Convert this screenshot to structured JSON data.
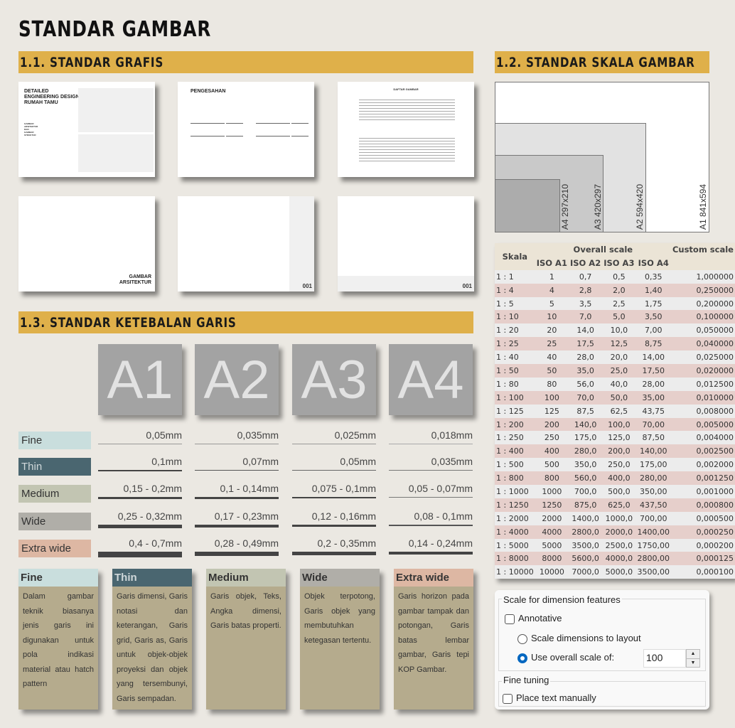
{
  "title": "STANDAR GAMBAR",
  "sections": {
    "s11": "1.1. STANDAR GRAFIS",
    "s12": "1.2. STANDAR SKALA GAMBAR",
    "s13": "1.3. STANDAR KETEBALAN GARIS"
  },
  "sheets": {
    "cover_title": "DETAILED ENGINEERING DESIGN RUMAH TAMU",
    "cover_sub": "GAMBAR ARSITEKTUR DAN GAMBAR STRUKTUR",
    "pengesahan": "PENGESAHAN",
    "daftar": "DAFTAR GAMBAR",
    "section_cover": "GAMBAR ARSITEKTUR",
    "sheet_no_1": "001",
    "sheet_no_2": "001"
  },
  "paper_sizes": [
    "A4 297x210",
    "A3 420x297",
    "A2 594x420",
    "A1 841x594"
  ],
  "scale_table": {
    "header_skala": "Skala",
    "header_overall": "Overall scale",
    "header_custom": "Custom scale",
    "columns": [
      "ISO A1",
      "ISO A2",
      "ISO A3",
      "ISO A4"
    ],
    "rows": [
      [
        "1 : 1",
        "1",
        "0,7",
        "0,5",
        "0,35",
        "1,000000"
      ],
      [
        "1 : 4",
        "4",
        "2,8",
        "2,0",
        "1,40",
        "0,250000"
      ],
      [
        "1 : 5",
        "5",
        "3,5",
        "2,5",
        "1,75",
        "0,200000"
      ],
      [
        "1 : 10",
        "10",
        "7,0",
        "5,0",
        "3,50",
        "0,100000"
      ],
      [
        "1 : 20",
        "20",
        "14,0",
        "10,0",
        "7,00",
        "0,050000"
      ],
      [
        "1 : 25",
        "25",
        "17,5",
        "12,5",
        "8,75",
        "0,040000"
      ],
      [
        "1 : 40",
        "40",
        "28,0",
        "20,0",
        "14,00",
        "0,025000"
      ],
      [
        "1 : 50",
        "50",
        "35,0",
        "25,0",
        "17,50",
        "0,020000"
      ],
      [
        "1 : 80",
        "80",
        "56,0",
        "40,0",
        "28,00",
        "0,012500"
      ],
      [
        "1 : 100",
        "100",
        "70,0",
        "50,0",
        "35,00",
        "0,010000"
      ],
      [
        "1 : 125",
        "125",
        "87,5",
        "62,5",
        "43,75",
        "0,008000"
      ],
      [
        "1 : 200",
        "200",
        "140,0",
        "100,0",
        "70,00",
        "0,005000"
      ],
      [
        "1 : 250",
        "250",
        "175,0",
        "125,0",
        "87,50",
        "0,004000"
      ],
      [
        "1 : 400",
        "400",
        "280,0",
        "200,0",
        "140,00",
        "0,002500"
      ],
      [
        "1 : 500",
        "500",
        "350,0",
        "250,0",
        "175,00",
        "0,002000"
      ],
      [
        "1 : 800",
        "800",
        "560,0",
        "400,0",
        "280,00",
        "0,001250"
      ],
      [
        "1 : 1000",
        "1000",
        "700,0",
        "500,0",
        "350,00",
        "0,001000"
      ],
      [
        "1 : 1250",
        "1250",
        "875,0",
        "625,0",
        "437,50",
        "0,000800"
      ],
      [
        "1 : 2000",
        "2000",
        "1400,0",
        "1000,0",
        "700,00",
        "0,000500"
      ],
      [
        "1 : 4000",
        "4000",
        "2800,0",
        "2000,0",
        "1400,00",
        "0,000250"
      ],
      [
        "1 : 5000",
        "5000",
        "3500,0",
        "2500,0",
        "1750,00",
        "0,000200"
      ],
      [
        "1 : 8000",
        "8000",
        "5600,0",
        "4000,0",
        "2800,00",
        "0,000125"
      ],
      [
        "1 : 10000",
        "10000",
        "7000,0",
        "5000,0",
        "3500,00",
        "0,000100"
      ]
    ]
  },
  "paper_headers": [
    "A1",
    "A2",
    "A3",
    "A4"
  ],
  "line_types": [
    {
      "label": "Fine",
      "color": "#c9dedd",
      "text_color": "#333333",
      "values": [
        "0,05mm",
        "0,035mm",
        "0,025mm",
        "0,018mm"
      ]
    },
    {
      "label": "Thin",
      "color": "#4a6670",
      "text_color": "#d0d8da",
      "values": [
        "0,1mm",
        "0,07mm",
        "0,05mm",
        "0,035mm"
      ]
    },
    {
      "label": "Medium",
      "color": "#c2c5b2",
      "text_color": "#333333",
      "values": [
        "0,15 - 0,2mm",
        "0,1 - 0,14mm",
        "0,075 - 0,1mm",
        "0,05 - 0,07mm"
      ]
    },
    {
      "label": "Wide",
      "color": "#b0aea8",
      "text_color": "#333333",
      "values": [
        "0,25 - 0,32mm",
        "0,17 - 0,23mm",
        "0,12 - 0,16mm",
        "0,08 - 0,1mm"
      ]
    },
    {
      "label": "Extra wide",
      "color": "#ddb7a3",
      "text_color": "#333333",
      "values": [
        "0,4 - 0,7mm",
        "0,28 - 0,49mm",
        "0,2 - 0,35mm",
        "0,14 - 0,24mm"
      ]
    }
  ],
  "descriptions": [
    {
      "title": "Fine",
      "text": "Dalam gambar teknik biasanya jenis garis ini digunakan untuk pola indikasi material atau hatch pattern"
    },
    {
      "title": "Thin",
      "text": "Garis dimensi, Garis notasi dan keterangan, Garis grid, Garis as, Garis untuk objek-objek proyeksi dan objek yang tersembunyi, Garis sempadan."
    },
    {
      "title": "Medium",
      "text": "Garis objek, Teks, Angka dimensi, Garis batas properti."
    },
    {
      "title": "Wide",
      "text": "Objek terpotong, Garis objek yang membutuhkan ketegasan tertentu."
    },
    {
      "title": "Extra wide",
      "text": "Garis horizon pada gambar tampak dan potongan, Garis batas lembar gambar, Garis tepi KOP Gambar."
    }
  ],
  "dialog": {
    "group1": "Scale for dimension features",
    "annotative": "Annotative",
    "annotative_checked": false,
    "radio1": "Scale dimensions to layout",
    "radio2": "Use overall scale of:",
    "selected": "radio2",
    "scale_value": "100",
    "group2": "Fine tuning",
    "place_text": "Place text manually",
    "place_text_checked": false
  },
  "colors": {
    "section_bar": "#dfb04a",
    "card_body": "#b5ab8d",
    "accent": "#0067c0"
  }
}
